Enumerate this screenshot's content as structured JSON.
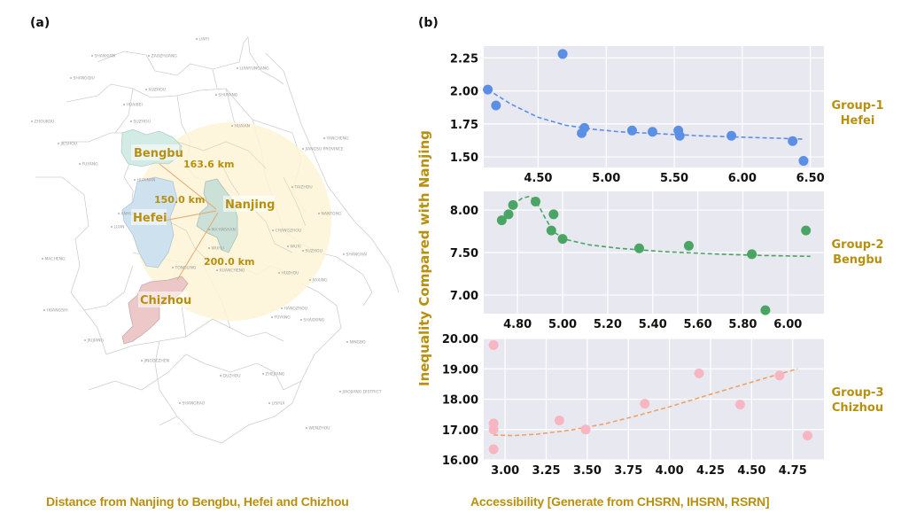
{
  "panels": {
    "a_label": "(a)",
    "b_label": "(b)"
  },
  "map": {
    "caption": "Distance from Nanjing to Bengbu, Hefei and Chizhou",
    "colors": {
      "circle": "#fdf3d6",
      "bengbu": "#cfe9e3",
      "hefei": "#c9dff0",
      "nanjing": "#c9dfd7",
      "chizhou": "#ebc6c6",
      "arrow": "#e5a56a",
      "label": "#b8900e"
    },
    "highlighted_cities": [
      {
        "name": "Bengbu"
      },
      {
        "name": "Hefei"
      },
      {
        "name": "Nanjing"
      },
      {
        "name": "Chizhou"
      }
    ],
    "distances": [
      {
        "from": "Nanjing",
        "to": "Bengbu",
        "label": "163.6 km"
      },
      {
        "from": "Nanjing",
        "to": "Hefei",
        "label": "150.0 km"
      },
      {
        "from": "Nanjing",
        "to": "Chizhou",
        "label": "200.0 km"
      }
    ],
    "city_labels": [
      "LINYI",
      "SHANXIAN",
      "ZAOZHUANG",
      "LIANYUNGANG",
      "SHANGQIU",
      "XUZHOU",
      "SHUYANG",
      "HUAIBEI",
      "SUZHOU",
      "ZHOUKOU",
      "JIESHOU",
      "FUYANG",
      "HUAINAN",
      "HUAIAN",
      "YANCHENG",
      "JIANGSU PROVINCE",
      "TAIZHOU",
      "NANTONG",
      "CHANGZHOU",
      "WUXI",
      "SUZHOU",
      "SHANGHAI",
      "HUZHOU",
      "JIAXING",
      "HANGZHOU",
      "FUYANG",
      "SHAOXING",
      "NINGBO",
      "LUAN",
      "ANHUI",
      "MACHENG",
      "MA'ANSHAN",
      "WUHU",
      "TONGLING",
      "XUANCHENG",
      "HUANGSHI",
      "JIUJIANG",
      "JINGDEZHEN",
      "QUZHOU",
      "ZHEJIANG",
      "LISHUI",
      "SHANGRAO",
      "WENZHOU",
      "JIAOJIANG DISTRICT"
    ]
  },
  "chart_data": [
    {
      "type": "scatter",
      "title": "Group-1 Hefei",
      "group_label_line1": "Group-1",
      "group_label_line2": "Hefei",
      "color": "#5b8fe6",
      "trend": "dashed decaying fit",
      "xlim": [
        4.1,
        6.6
      ],
      "ylim": [
        1.42,
        2.34
      ],
      "xticks": [
        "4.50",
        "5.00",
        "5.50",
        "6.00",
        "6.50"
      ],
      "xtick_values": [
        4.5,
        5.0,
        5.5,
        6.0,
        6.5
      ],
      "yticks": [
        "1.50",
        "1.75",
        "2.00",
        "2.25"
      ],
      "ytick_values": [
        1.5,
        1.75,
        2.0,
        2.25
      ],
      "points": [
        [
          4.13,
          2.01
        ],
        [
          4.19,
          1.89
        ],
        [
          4.68,
          2.28
        ],
        [
          4.82,
          1.68
        ],
        [
          4.84,
          1.72
        ],
        [
          5.19,
          1.7
        ],
        [
          5.34,
          1.69
        ],
        [
          5.53,
          1.7
        ],
        [
          5.54,
          1.66
        ],
        [
          5.92,
          1.66
        ],
        [
          6.37,
          1.62
        ],
        [
          6.45,
          1.47
        ]
      ],
      "trendline": [
        [
          4.13,
          2.01
        ],
        [
          4.3,
          1.9
        ],
        [
          4.5,
          1.8
        ],
        [
          4.7,
          1.74
        ],
        [
          4.9,
          1.71
        ],
        [
          5.1,
          1.69
        ],
        [
          5.4,
          1.675
        ],
        [
          5.7,
          1.66
        ],
        [
          6.0,
          1.65
        ],
        [
          6.3,
          1.64
        ],
        [
          6.45,
          1.635
        ]
      ],
      "grid": true
    },
    {
      "type": "scatter",
      "title": "Group-2 Bengbu",
      "group_label_line1": "Group-2",
      "group_label_line2": "Bengbu",
      "color": "#4aa564",
      "trend": "dashed peaked fit",
      "xlim": [
        4.65,
        6.16
      ],
      "ylim": [
        6.78,
        8.22
      ],
      "xticks": [
        "4.80",
        "5.00",
        "5.20",
        "5.40",
        "5.60",
        "5.80",
        "6.00"
      ],
      "xtick_values": [
        4.8,
        5.0,
        5.2,
        5.4,
        5.6,
        5.8,
        6.0
      ],
      "yticks": [
        "7.00",
        "7.50",
        "8.00"
      ],
      "ytick_values": [
        7.0,
        7.5,
        8.0
      ],
      "points": [
        [
          4.73,
          7.88
        ],
        [
          4.76,
          7.95
        ],
        [
          4.78,
          8.06
        ],
        [
          4.88,
          8.1
        ],
        [
          4.96,
          7.95
        ],
        [
          4.95,
          7.76
        ],
        [
          5.0,
          7.66
        ],
        [
          5.34,
          7.55
        ],
        [
          5.56,
          7.58
        ],
        [
          5.84,
          7.48
        ],
        [
          5.9,
          6.82
        ],
        [
          6.08,
          7.76
        ]
      ],
      "trendline": [
        [
          4.78,
          8.06
        ],
        [
          4.82,
          8.14
        ],
        [
          4.85,
          8.16
        ],
        [
          4.88,
          8.12
        ],
        [
          4.92,
          7.92
        ],
        [
          4.96,
          7.74
        ],
        [
          5.02,
          7.65
        ],
        [
          5.12,
          7.59
        ],
        [
          5.25,
          7.55
        ],
        [
          5.45,
          7.51
        ],
        [
          5.7,
          7.48
        ],
        [
          5.9,
          7.465
        ],
        [
          6.1,
          7.455
        ]
      ],
      "grid": true
    },
    {
      "type": "scatter",
      "title": "Group-3 Chizhou",
      "group_label_line1": "Group-3",
      "group_label_line2": "Chizhou",
      "color": "#f8b6c3",
      "trend_color": "#f0a266",
      "trend": "dashed rising fit",
      "xlim": [
        2.87,
        4.94
      ],
      "ylim": [
        16.0,
        20.0
      ],
      "xticks": [
        "3.00",
        "3.25",
        "3.50",
        "3.75",
        "4.00",
        "4.25",
        "4.50",
        "4.75"
      ],
      "xtick_values": [
        3.0,
        3.25,
        3.5,
        3.75,
        4.0,
        4.25,
        4.5,
        4.75
      ],
      "yticks": [
        "16.00",
        "17.00",
        "18.00",
        "19.00",
        "20.00"
      ],
      "ytick_values": [
        16,
        17,
        18,
        19,
        20
      ],
      "points": [
        [
          2.93,
          19.78
        ],
        [
          2.93,
          17.2
        ],
        [
          2.93,
          17.0
        ],
        [
          2.93,
          16.35
        ],
        [
          3.33,
          17.3
        ],
        [
          3.49,
          17.0
        ],
        [
          3.85,
          17.85
        ],
        [
          4.18,
          18.85
        ],
        [
          4.43,
          17.82
        ],
        [
          4.67,
          18.78
        ],
        [
          4.84,
          16.8
        ]
      ],
      "trendline": [
        [
          2.93,
          16.82
        ],
        [
          3.05,
          16.8
        ],
        [
          3.2,
          16.85
        ],
        [
          3.4,
          16.98
        ],
        [
          3.6,
          17.18
        ],
        [
          3.8,
          17.45
        ],
        [
          4.0,
          17.75
        ],
        [
          4.2,
          18.08
        ],
        [
          4.4,
          18.4
        ],
        [
          4.6,
          18.72
        ],
        [
          4.78,
          19.0
        ]
      ],
      "grid": true
    }
  ],
  "chart_common": {
    "ylabel": "Inequality Compared with Nanjing",
    "xlabel": "Accessibility [Generate from CHSRN, IHSRN, RSRN]",
    "background": "#e8e8f1",
    "label_color": "#b8900e"
  }
}
